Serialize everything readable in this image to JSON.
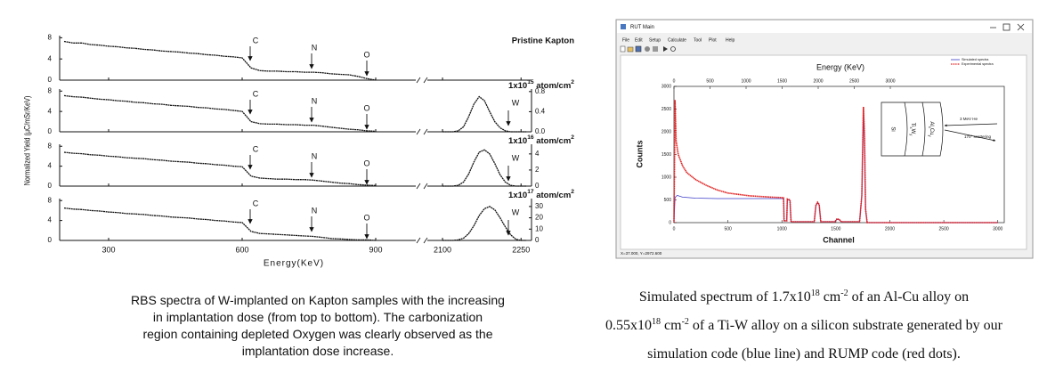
{
  "chart_data": [
    {
      "type": "line",
      "title": "Pristine Kapton",
      "ylabel": "Normalized Yield (μC/mSr/KeV)",
      "ylim": [
        0,
        8.4
      ],
      "yticks": [
        0,
        4,
        8
      ],
      "annotations": [
        "C",
        "N",
        "O"
      ],
      "series": [
        {
          "color": "#111111",
          "x": [
            200,
            220,
            240,
            260,
            280,
            300,
            320,
            340,
            360,
            380,
            400,
            420,
            440,
            460,
            480,
            500,
            520,
            540,
            560,
            580,
            600,
            620,
            640,
            660,
            680,
            700,
            720,
            740,
            760,
            780,
            800,
            820,
            840,
            860,
            880,
            900
          ],
          "values": [
            7.3,
            7.0,
            7.0,
            6.7,
            6.6,
            6.4,
            6.3,
            6.1,
            6.0,
            5.8,
            5.7,
            5.5,
            5.4,
            5.3,
            5.1,
            5.0,
            4.8,
            4.7,
            4.5,
            4.4,
            4.2,
            2.3,
            1.8,
            1.7,
            1.7,
            1.6,
            1.6,
            1.5,
            1.5,
            1.4,
            1.2,
            1.1,
            1.0,
            0.7,
            0.3,
            0.0
          ]
        }
      ]
    },
    {
      "type": "line",
      "title": [
        "1x10",
        "15",
        " atom/cm",
        "2"
      ],
      "ylim": [
        0,
        8.4
      ],
      "yticks": [
        0,
        4,
        8
      ],
      "y2lim": [
        0,
        0.85
      ],
      "y2ticks": [
        {
          "value": 0,
          "label": "0.0"
        },
        0.4,
        0.8
      ],
      "annotations": [
        "C",
        "N",
        "O",
        "W"
      ],
      "series": [
        {
          "color": "#111111",
          "x": [
            200,
            220,
            240,
            260,
            280,
            300,
            320,
            340,
            360,
            380,
            400,
            420,
            440,
            460,
            480,
            500,
            520,
            540,
            560,
            580,
            600,
            620,
            640,
            660,
            680,
            700,
            720,
            740,
            760,
            780,
            800,
            820,
            840,
            860,
            880,
            900
          ],
          "values": [
            7.1,
            6.9,
            6.8,
            6.6,
            6.4,
            6.3,
            6.1,
            6.0,
            5.8,
            5.7,
            5.5,
            5.4,
            5.2,
            5.1,
            5.0,
            4.8,
            4.7,
            4.5,
            4.4,
            4.2,
            4.0,
            2.0,
            1.6,
            1.5,
            1.5,
            1.4,
            1.4,
            1.3,
            1.3,
            1.1,
            0.9,
            0.7,
            0.5,
            0.4,
            0.2,
            0.1
          ]
        },
        {
          "color": "#111111",
          "axis": "y2",
          "x": [
            2100,
            2110,
            2120,
            2130,
            2140,
            2150,
            2160,
            2170,
            2180,
            2190,
            2200,
            2210,
            2220,
            2230,
            2240,
            2250,
            2260
          ],
          "values": [
            0,
            0,
            0,
            0.02,
            0.1,
            0.3,
            0.55,
            0.7,
            0.62,
            0.4,
            0.2,
            0.08,
            0.02,
            0,
            0,
            0,
            0
          ]
        }
      ]
    },
    {
      "type": "line",
      "title": [
        "1x10",
        "16",
        " atom/cm",
        "2"
      ],
      "ylim": [
        0,
        8.4
      ],
      "yticks": [
        0,
        4,
        8
      ],
      "y2lim": [
        0,
        5.2
      ],
      "y2ticks": [
        0,
        2,
        4
      ],
      "annotations": [
        "C",
        "N",
        "O",
        "W"
      ],
      "series": [
        {
          "color": "#111111",
          "x": [
            200,
            220,
            240,
            260,
            280,
            300,
            320,
            340,
            360,
            380,
            400,
            420,
            440,
            460,
            480,
            500,
            520,
            540,
            560,
            580,
            600,
            620,
            640,
            660,
            680,
            700,
            720,
            740,
            760,
            780,
            800,
            820,
            840,
            860,
            880,
            900
          ],
          "values": [
            6.8,
            6.6,
            6.5,
            6.3,
            6.2,
            6.0,
            5.9,
            5.7,
            5.6,
            5.5,
            5.3,
            5.2,
            5.0,
            4.9,
            4.8,
            4.6,
            4.5,
            4.3,
            4.2,
            4.0,
            3.9,
            2.0,
            1.6,
            1.5,
            1.4,
            1.4,
            1.3,
            1.3,
            1.2,
            1.0,
            0.8,
            0.6,
            0.5,
            0.3,
            0.2,
            0.1
          ]
        },
        {
          "color": "#111111",
          "axis": "y2",
          "x": [
            2100,
            2110,
            2120,
            2130,
            2140,
            2150,
            2160,
            2170,
            2180,
            2190,
            2200,
            2210,
            2220,
            2230,
            2240,
            2250,
            2260
          ],
          "values": [
            0,
            0,
            0,
            0.1,
            0.5,
            1.5,
            3.0,
            4.2,
            4.5,
            4.0,
            2.8,
            1.4,
            0.5,
            0.1,
            0,
            0,
            0
          ]
        }
      ]
    },
    {
      "type": "line",
      "title": [
        "1x10",
        "17",
        " atom/cm",
        "2"
      ],
      "xlabel": "Energy(KeV)",
      "xlim": [
        [
          190,
          990
        ],
        [
          2071,
          2270
        ]
      ],
      "xticks": [
        300,
        600,
        900,
        2100,
        2250
      ],
      "ylim": [
        0,
        8.4
      ],
      "yticks": [
        0,
        4,
        8
      ],
      "y2lim": [
        0,
        37
      ],
      "y2ticks": [
        0,
        10,
        20,
        30
      ],
      "annotations": [
        "C",
        "N",
        "O",
        "W"
      ],
      "series": [
        {
          "color": "#111111",
          "x": [
            200,
            220,
            240,
            260,
            280,
            300,
            320,
            340,
            360,
            380,
            400,
            420,
            440,
            460,
            480,
            500,
            520,
            540,
            560,
            580,
            600,
            620,
            640,
            660,
            680,
            700,
            720,
            740,
            760,
            780,
            800,
            820,
            840,
            860,
            880,
            900
          ],
          "values": [
            6.5,
            6.3,
            6.2,
            6.0,
            5.9,
            5.7,
            5.6,
            5.4,
            5.3,
            5.2,
            5.0,
            4.9,
            4.7,
            4.6,
            4.5,
            4.3,
            4.2,
            4.0,
            3.9,
            3.7,
            3.6,
            1.8,
            1.4,
            1.3,
            1.2,
            1.1,
            1.0,
            0.9,
            0.8,
            0.6,
            0.4,
            0.3,
            0.2,
            0.1,
            0.1,
            0.0
          ]
        },
        {
          "color": "#111111",
          "axis": "y2",
          "x": [
            2100,
            2110,
            2120,
            2130,
            2140,
            2150,
            2160,
            2170,
            2180,
            2190,
            2200,
            2210,
            2220,
            2230,
            2240,
            2250,
            2260
          ],
          "values": [
            0,
            0,
            0,
            0.5,
            2,
            6,
            13,
            22,
            28,
            30,
            27,
            20,
            12,
            5,
            1,
            0,
            0
          ]
        }
      ]
    },
    {
      "type": "line",
      "x2label": "Energy (KeV)",
      "xlabel": "Channel",
      "ylabel": "Counts",
      "x2lim": [
        0,
        4580
      ],
      "x2ticks": [
        0,
        500,
        1000,
        1500,
        2000,
        2500,
        3000
      ],
      "xlim": [
        0,
        3060
      ],
      "xticks": [
        0,
        500,
        1000,
        1500,
        2000,
        2500,
        3000
      ],
      "ylim": [
        0,
        3000
      ],
      "yticks": [
        0,
        500,
        1000,
        1500,
        2000,
        2500,
        3000
      ],
      "legend": "upper right",
      "annotations": [
        "Si",
        [
          "Ti",
          "x",
          "W",
          "y"
        ],
        [
          "Al",
          "x",
          "Cu",
          "y"
        ],
        "3 MeV He",
        "170° scattering"
      ],
      "series": [
        {
          "name": "Simulated spectra",
          "color": "#3a3ac8",
          "x": [
            0,
            10,
            30,
            80,
            200,
            400,
            700,
            1000,
            1015,
            1020,
            1045,
            1050,
            1075,
            1085,
            1300,
            1315,
            1330,
            1345,
            1360,
            1490,
            1510,
            1530,
            1550,
            1720,
            1740,
            1755,
            1765,
            1775,
            1790,
            3000
          ],
          "values": [
            0,
            550,
            600,
            560,
            540,
            530,
            530,
            530,
            525,
            40,
            40,
            500,
            490,
            20,
            20,
            370,
            440,
            390,
            20,
            20,
            75,
            65,
            20,
            20,
            580,
            2500,
            1850,
            280,
            0,
            0
          ]
        },
        {
          "name": "Experimental spectra",
          "color": "#e02020",
          "x": [
            0,
            10,
            20,
            40,
            80,
            120,
            200,
            300,
            400,
            500,
            700,
            900,
            1000,
            1015,
            1020,
            1045,
            1050,
            1075,
            1085,
            1300,
            1315,
            1330,
            1345,
            1360,
            1490,
            1510,
            1530,
            1550,
            1720,
            1740,
            1755,
            1765,
            1775,
            1790,
            3000
          ],
          "values": [
            0,
            2700,
            1800,
            1500,
            1250,
            1100,
            950,
            820,
            720,
            650,
            590,
            560,
            550,
            545,
            40,
            40,
            520,
            500,
            20,
            20,
            380,
            450,
            400,
            20,
            20,
            80,
            70,
            20,
            20,
            600,
            2550,
            1900,
            300,
            0,
            0
          ]
        }
      ]
    }
  ],
  "window": {
    "title": "RUT Main",
    "menu": [
      "File",
      "Edit",
      "Setup",
      "Calculate",
      "Tool",
      "Plot",
      "Help"
    ],
    "status": "X=37.000, Y=2972.600"
  },
  "captions": {
    "left": {
      "lines": [
        "RBS spectra of W-implanted on Kapton samples with the increasing",
        "in implantation dose (from top to bottom). The carbonization",
        "region containing depleted Oxygen was clearly observed as the",
        "implantation dose increase."
      ]
    },
    "right": {
      "lines": [
        [
          "Simulated spectrum of 1.7x10",
          "18",
          "  cm",
          "-2",
          "  of  an  Al-Cu alloy on"
        ],
        [
          "0.55x10",
          "18",
          " cm",
          "-2",
          " of a Ti-W alloy on a silicon substrate generated by our"
        ],
        [
          "simulation code (blue line) and RUMP code (red dots)."
        ]
      ]
    }
  }
}
